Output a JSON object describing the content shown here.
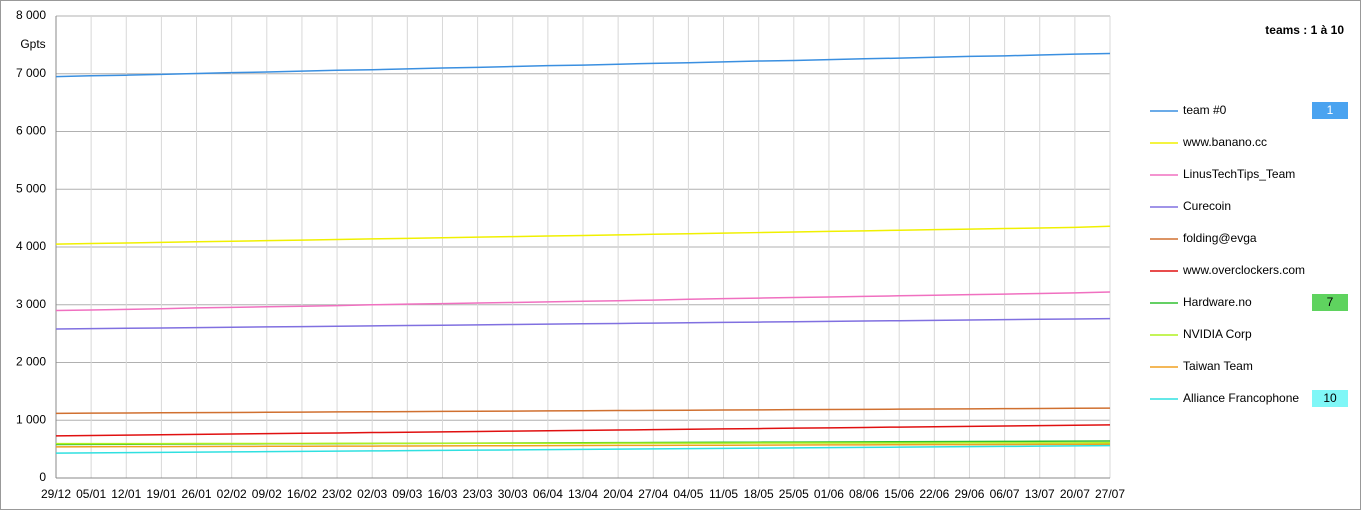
{
  "chart_data": {
    "type": "line",
    "title": "teams : 1 à 10",
    "y_label": "Gpts",
    "categories": [
      "29/12",
      "05/01",
      "12/01",
      "19/01",
      "26/01",
      "02/02",
      "09/02",
      "16/02",
      "23/02",
      "02/03",
      "09/03",
      "16/03",
      "23/03",
      "30/03",
      "06/04",
      "13/04",
      "20/04",
      "27/04",
      "04/05",
      "11/05",
      "18/05",
      "25/05",
      "01/06",
      "08/06",
      "15/06",
      "22/06",
      "29/06",
      "06/07",
      "13/07",
      "20/07",
      "27/07"
    ],
    "ylim": [
      0,
      8000
    ],
    "yticks": [
      0,
      {
        "value": 1000,
        "label": "1 000"
      },
      {
        "value": 2000,
        "label": "2 000"
      },
      {
        "value": 3000,
        "label": "3 000"
      },
      {
        "value": 4000,
        "label": "4 000"
      },
      {
        "value": 5000,
        "label": "5 000"
      },
      {
        "value": 6000,
        "label": "6 000"
      },
      {
        "value": 7000,
        "label": "7 000"
      },
      {
        "value": 8000,
        "label": "8 000"
      }
    ],
    "grid": true,
    "series": [
      {
        "name": "team #0",
        "color": "#3a8fe0",
        "badge": "1",
        "badge_color": "#4aa3f0",
        "values": [
          6950,
          6965,
          6975,
          6990,
          7005,
          7020,
          7030,
          7045,
          7060,
          7070,
          7085,
          7100,
          7110,
          7125,
          7140,
          7150,
          7165,
          7180,
          7190,
          7205,
          7220,
          7230,
          7245,
          7260,
          7270,
          7285,
          7300,
          7310,
          7325,
          7340,
          7350
        ]
      },
      {
        "name": "www.banano.cc",
        "color": "#f0f000",
        "values": [
          4050,
          4060,
          4070,
          4080,
          4090,
          4100,
          4110,
          4120,
          4130,
          4140,
          4150,
          4160,
          4170,
          4180,
          4190,
          4200,
          4210,
          4220,
          4230,
          4240,
          4250,
          4260,
          4270,
          4280,
          4290,
          4300,
          4310,
          4320,
          4330,
          4340,
          4360
        ]
      },
      {
        "name": "LinusTechTips_Team",
        "color": "#f070c0",
        "values": [
          2900,
          2910,
          2920,
          2930,
          2945,
          2955,
          2965,
          2975,
          2985,
          3000,
          3010,
          3020,
          3030,
          3040,
          3050,
          3060,
          3070,
          3080,
          3095,
          3105,
          3115,
          3125,
          3135,
          3145,
          3155,
          3165,
          3175,
          3185,
          3195,
          3205,
          3220
        ]
      },
      {
        "name": "Curecoin",
        "color": "#8070e0",
        "values": [
          2580,
          2586,
          2592,
          2598,
          2604,
          2610,
          2616,
          2622,
          2628,
          2634,
          2640,
          2646,
          2652,
          2658,
          2664,
          2670,
          2676,
          2682,
          2688,
          2694,
          2700,
          2706,
          2712,
          2718,
          2724,
          2730,
          2736,
          2742,
          2748,
          2754,
          2760
        ]
      },
      {
        "name": "folding@evga",
        "color": "#d07030",
        "values": [
          1120,
          1123,
          1126,
          1129,
          1132,
          1135,
          1138,
          1141,
          1144,
          1147,
          1150,
          1153,
          1156,
          1159,
          1162,
          1165,
          1168,
          1171,
          1174,
          1177,
          1180,
          1183,
          1186,
          1189,
          1192,
          1195,
          1198,
          1201,
          1204,
          1207,
          1210
        ]
      },
      {
        "name": "www.overclockers.com",
        "color": "#e01010",
        "values": [
          730,
          736,
          742,
          749,
          755,
          761,
          768,
          774,
          780,
          787,
          793,
          799,
          806,
          812,
          818,
          825,
          831,
          837,
          844,
          850,
          856,
          863,
          869,
          875,
          882,
          888,
          894,
          901,
          907,
          913,
          920
        ]
      },
      {
        "name": "Hardware.no",
        "color": "#30c030",
        "badge": "7",
        "badge_color": "#5fd35f",
        "values": [
          580,
          582,
          584,
          586,
          588,
          590,
          592,
          594,
          596,
          598,
          600,
          602,
          604,
          606,
          608,
          610,
          612,
          614,
          616,
          618,
          620,
          622,
          624,
          626,
          628,
          630,
          632,
          634,
          636,
          638,
          640
        ]
      },
      {
        "name": "NVIDIA Corp",
        "color": "#b0f020",
        "values": [
          595,
          595,
          596,
          596,
          597,
          597,
          598,
          598,
          599,
          599,
          600,
          600,
          601,
          601,
          602,
          602,
          603,
          603,
          604,
          604,
          605,
          605,
          606,
          606,
          607,
          607,
          608,
          608,
          609,
          609,
          610
        ]
      },
      {
        "name": "Taiwan Team",
        "color": "#f0a020",
        "values": [
          540,
          541,
          543,
          544,
          546,
          547,
          549,
          550,
          552,
          553,
          555,
          556,
          558,
          559,
          561,
          562,
          564,
          565,
          567,
          568,
          570,
          571,
          573,
          574,
          576,
          577,
          579,
          580,
          582,
          583,
          585
        ]
      },
      {
        "name": "Alliance Francophone",
        "color": "#30e0e0",
        "badge": "10",
        "badge_color": "#7ff7f7",
        "values": [
          430,
          434,
          439,
          443,
          447,
          452,
          456,
          460,
          465,
          469,
          473,
          478,
          482,
          486,
          491,
          495,
          499,
          504,
          508,
          512,
          517,
          521,
          525,
          530,
          534,
          538,
          543,
          547,
          551,
          556,
          560
        ]
      }
    ]
  }
}
